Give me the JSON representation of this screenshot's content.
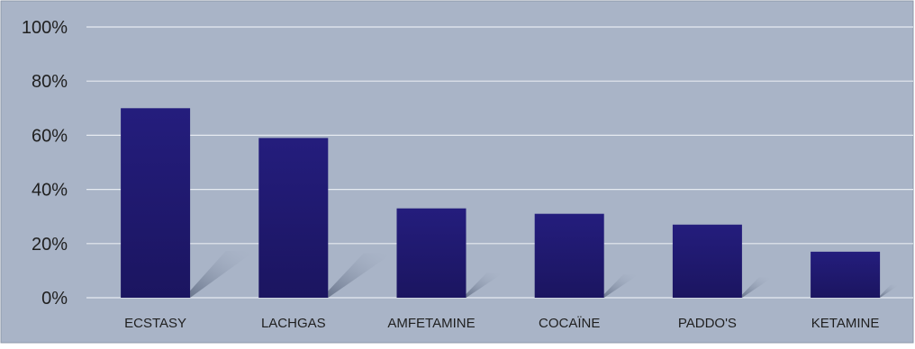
{
  "chart_data": {
    "type": "bar",
    "title": "",
    "xlabel": "",
    "ylabel": "",
    "categories": [
      "ECSTASY",
      "LACHGAS",
      "AMFETAMINE",
      "COCAÏNE",
      "PADDO'S",
      "KETAMINE"
    ],
    "values": [
      70,
      59,
      33,
      31,
      27,
      17
    ],
    "ylim": [
      0,
      100
    ],
    "yticks": [
      0,
      20,
      40,
      60,
      80,
      100
    ],
    "ytick_labels": [
      "0%",
      "20%",
      "40%",
      "60%",
      "80%",
      "100%"
    ],
    "grid": true,
    "legend": "none",
    "colors": {
      "bar": "#221c78",
      "bar_dark": "#1a145e",
      "plot_bg": "#a9b4c7",
      "gridline": "#e6eaf1",
      "axis_text": "#1f1f1f",
      "border": "#8d97a8",
      "shadow": "#6e7a90"
    }
  }
}
